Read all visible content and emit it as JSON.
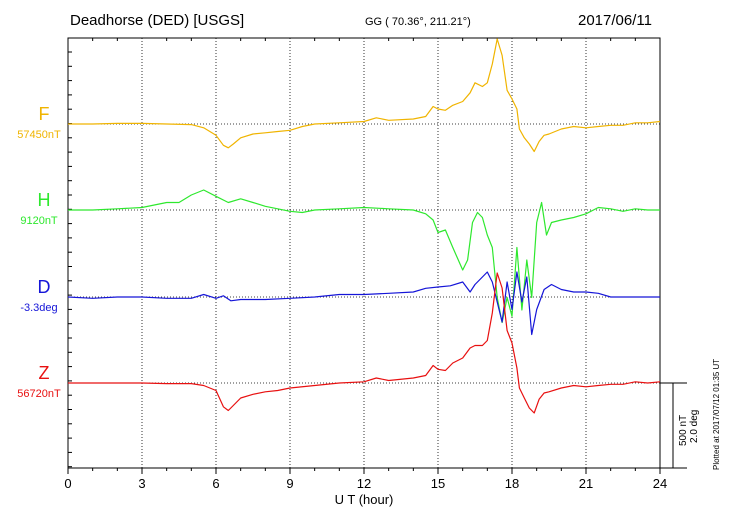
{
  "header": {
    "title": "Deadhorse (DED)  [USGS]",
    "coords": "GG ( 70.36°, 211.21°)",
    "date": "2017/06/11"
  },
  "footer": {
    "plotted": "Plotted at 2017/07/12 01:35 UT",
    "scale_nt": "500 nT",
    "scale_deg": "2.0 deg"
  },
  "chart_data": {
    "type": "line",
    "xlabel": "U T (hour)",
    "xlim": [
      0,
      24
    ],
    "xticks": [
      0,
      3,
      6,
      9,
      12,
      15,
      18,
      21,
      24
    ],
    "grid": true,
    "series": [
      {
        "name": "F",
        "baseline": "57450nT",
        "color": "#f0b400",
        "points": [
          [
            0,
            0
          ],
          [
            1,
            0
          ],
          [
            2,
            5
          ],
          [
            3,
            5
          ],
          [
            4,
            0
          ],
          [
            5,
            -5
          ],
          [
            5.5,
            -30
          ],
          [
            6,
            -90
          ],
          [
            6.3,
            -170
          ],
          [
            6.5,
            -190
          ],
          [
            6.7,
            -160
          ],
          [
            7,
            -110
          ],
          [
            7.5,
            -80
          ],
          [
            8,
            -70
          ],
          [
            8.5,
            -60
          ],
          [
            9,
            -50
          ],
          [
            9.5,
            -20
          ],
          [
            10,
            0
          ],
          [
            11,
            10
          ],
          [
            12,
            20
          ],
          [
            12.5,
            50
          ],
          [
            13,
            30
          ],
          [
            14,
            40
          ],
          [
            14.5,
            60
          ],
          [
            14.8,
            140
          ],
          [
            15,
            120
          ],
          [
            15.3,
            110
          ],
          [
            15.6,
            150
          ],
          [
            16,
            180
          ],
          [
            16.3,
            250
          ],
          [
            16.5,
            330
          ],
          [
            16.8,
            300
          ],
          [
            17,
            330
          ],
          [
            17.2,
            480
          ],
          [
            17.4,
            680
          ],
          [
            17.6,
            550
          ],
          [
            17.8,
            270
          ],
          [
            18,
            200
          ],
          [
            18.2,
            120
          ],
          [
            18.3,
            -40
          ],
          [
            18.5,
            -110
          ],
          [
            18.7,
            -160
          ],
          [
            18.9,
            -220
          ],
          [
            19.1,
            -140
          ],
          [
            19.3,
            -90
          ],
          [
            19.5,
            -80
          ],
          [
            20,
            -40
          ],
          [
            20.5,
            -20
          ],
          [
            21,
            -30
          ],
          [
            21.5,
            -20
          ],
          [
            22,
            -10
          ],
          [
            22.5,
            -10
          ],
          [
            23,
            10
          ],
          [
            23.5,
            10
          ],
          [
            24,
            20
          ]
        ]
      },
      {
        "name": "H",
        "baseline": "9120nT",
        "color": "#2ee82e",
        "points": [
          [
            0,
            0
          ],
          [
            1,
            0
          ],
          [
            2,
            10
          ],
          [
            3,
            20
          ],
          [
            3.5,
            40
          ],
          [
            4,
            60
          ],
          [
            4.5,
            60
          ],
          [
            5,
            120
          ],
          [
            5.5,
            160
          ],
          [
            6,
            110
          ],
          [
            6.5,
            60
          ],
          [
            7,
            90
          ],
          [
            7.5,
            60
          ],
          [
            8,
            30
          ],
          [
            9,
            -10
          ],
          [
            9.5,
            -20
          ],
          [
            10,
            0
          ],
          [
            11,
            10
          ],
          [
            12,
            20
          ],
          [
            13,
            10
          ],
          [
            14,
            0
          ],
          [
            14.5,
            -30
          ],
          [
            14.8,
            -80
          ],
          [
            15,
            -180
          ],
          [
            15.3,
            -160
          ],
          [
            15.6,
            -300
          ],
          [
            16,
            -480
          ],
          [
            16.2,
            -400
          ],
          [
            16.4,
            -100
          ],
          [
            16.6,
            -20
          ],
          [
            16.8,
            -60
          ],
          [
            17,
            -200
          ],
          [
            17.2,
            -300
          ],
          [
            17.4,
            -700
          ],
          [
            17.6,
            -900
          ],
          [
            17.8,
            -700
          ],
          [
            18,
            -850
          ],
          [
            18.2,
            -300
          ],
          [
            18.4,
            -800
          ],
          [
            18.6,
            -400
          ],
          [
            18.8,
            -700
          ],
          [
            19,
            -100
          ],
          [
            19.2,
            60
          ],
          [
            19.4,
            -200
          ],
          [
            19.6,
            -100
          ],
          [
            20,
            -80
          ],
          [
            20.5,
            -60
          ],
          [
            21,
            -30
          ],
          [
            21.5,
            20
          ],
          [
            22,
            10
          ],
          [
            22.5,
            -10
          ],
          [
            23,
            10
          ],
          [
            23.5,
            0
          ],
          [
            24,
            0
          ]
        ]
      },
      {
        "name": "D",
        "baseline": "-3.3deg",
        "color": "#1515d8",
        "points": [
          [
            0,
            0
          ],
          [
            1,
            -10
          ],
          [
            2,
            0
          ],
          [
            3,
            0
          ],
          [
            4,
            -10
          ],
          [
            5,
            -10
          ],
          [
            5.5,
            20
          ],
          [
            6,
            -10
          ],
          [
            6.3,
            10
          ],
          [
            6.6,
            -30
          ],
          [
            7,
            -20
          ],
          [
            8,
            -20
          ],
          [
            9,
            -10
          ],
          [
            10,
            0
          ],
          [
            11,
            20
          ],
          [
            12,
            20
          ],
          [
            13,
            30
          ],
          [
            14,
            40
          ],
          [
            14.5,
            70
          ],
          [
            15,
            80
          ],
          [
            15.5,
            90
          ],
          [
            16,
            120
          ],
          [
            16.3,
            40
          ],
          [
            16.5,
            100
          ],
          [
            16.8,
            160
          ],
          [
            17,
            200
          ],
          [
            17.2,
            120
          ],
          [
            17.4,
            -40
          ],
          [
            17.6,
            -200
          ],
          [
            17.8,
            120
          ],
          [
            18,
            -100
          ],
          [
            18.2,
            200
          ],
          [
            18.4,
            -40
          ],
          [
            18.6,
            160
          ],
          [
            18.8,
            -300
          ],
          [
            19,
            -100
          ],
          [
            19.3,
            60
          ],
          [
            19.6,
            100
          ],
          [
            20,
            60
          ],
          [
            20.5,
            40
          ],
          [
            21,
            40
          ],
          [
            21.5,
            30
          ],
          [
            22,
            0
          ],
          [
            22.5,
            0
          ],
          [
            23,
            0
          ],
          [
            23.5,
            0
          ],
          [
            24,
            0
          ]
        ]
      },
      {
        "name": "Z",
        "baseline": "56720nT",
        "color": "#e81010",
        "points": [
          [
            0,
            0
          ],
          [
            1,
            0
          ],
          [
            2,
            0
          ],
          [
            3,
            0
          ],
          [
            4,
            -5
          ],
          [
            5,
            -5
          ],
          [
            5.5,
            -20
          ],
          [
            6,
            -60
          ],
          [
            6.3,
            -190
          ],
          [
            6.5,
            -220
          ],
          [
            6.7,
            -180
          ],
          [
            7,
            -120
          ],
          [
            7.5,
            -90
          ],
          [
            8,
            -70
          ],
          [
            8.5,
            -60
          ],
          [
            9,
            -40
          ],
          [
            10,
            -20
          ],
          [
            11,
            0
          ],
          [
            12,
            10
          ],
          [
            12.5,
            40
          ],
          [
            13,
            20
          ],
          [
            14,
            40
          ],
          [
            14.5,
            60
          ],
          [
            14.8,
            140
          ],
          [
            15,
            110
          ],
          [
            15.3,
            100
          ],
          [
            15.6,
            160
          ],
          [
            16,
            200
          ],
          [
            16.3,
            280
          ],
          [
            16.5,
            300
          ],
          [
            16.8,
            300
          ],
          [
            17,
            340
          ],
          [
            17.2,
            560
          ],
          [
            17.4,
            880
          ],
          [
            17.6,
            760
          ],
          [
            17.8,
            420
          ],
          [
            18,
            320
          ],
          [
            18.2,
            120
          ],
          [
            18.3,
            -40
          ],
          [
            18.5,
            -120
          ],
          [
            18.7,
            -200
          ],
          [
            18.9,
            -240
          ],
          [
            19.1,
            -130
          ],
          [
            19.3,
            -80
          ],
          [
            19.5,
            -70
          ],
          [
            20,
            -40
          ],
          [
            20.5,
            -20
          ],
          [
            21,
            -30
          ],
          [
            21.5,
            -20
          ],
          [
            22,
            -10
          ],
          [
            22.5,
            -10
          ],
          [
            23,
            10
          ],
          [
            23.5,
            0
          ],
          [
            24,
            10
          ]
        ]
      }
    ]
  }
}
